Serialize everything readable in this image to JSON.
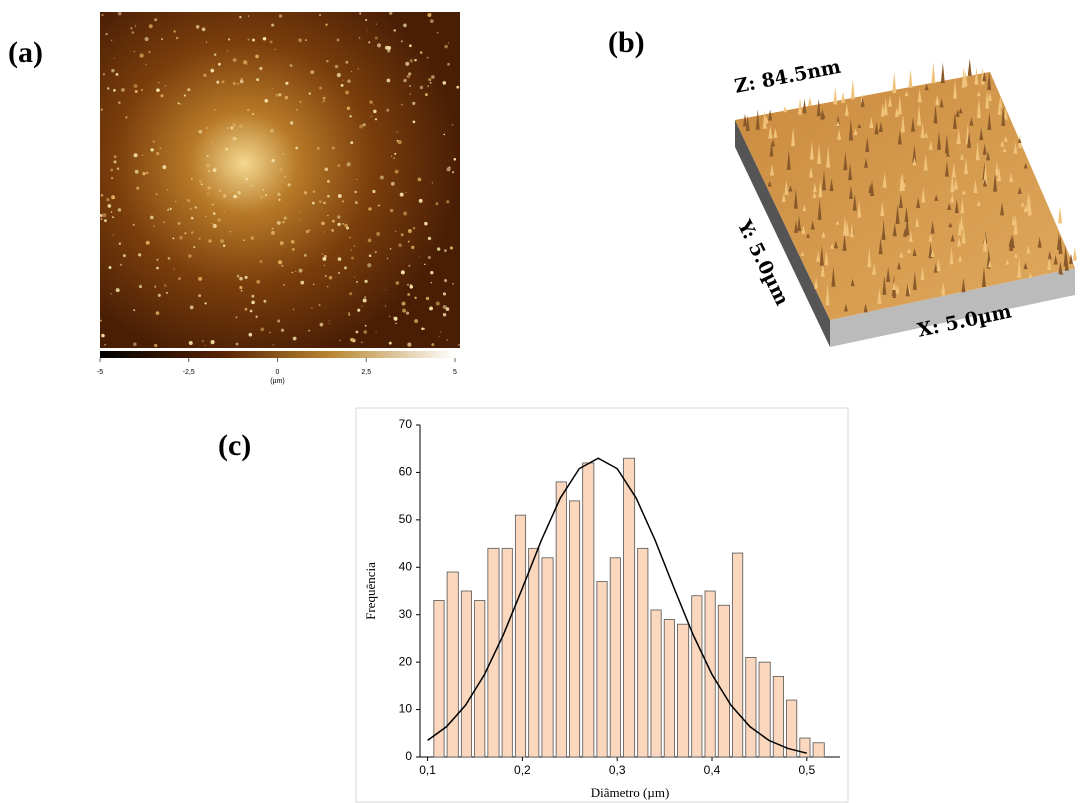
{
  "panels": {
    "a": {
      "label": "(a)",
      "colorbar": {
        "lim": [
          -5,
          5
        ],
        "ticks": [
          -5,
          {
            "value": -2.5,
            "label": "-2,5"
          },
          0,
          {
            "value": 2.5,
            "label": "2,5"
          },
          5
        ],
        "unit": "(µm)"
      }
    },
    "b": {
      "label": "(b)",
      "z_label": "Z: 84.5nm",
      "y_label": "Y: 5.0µm",
      "x_label": "X: 5.0µm"
    }
  },
  "chart_data": {
    "type": "histogram",
    "panel_label": "(c)",
    "x_label": "Diâmetro (µm)",
    "y_label": "Frequência",
    "bins": [
      0.105,
      0.119,
      0.134,
      0.148,
      0.162,
      0.177,
      0.191,
      0.205,
      0.219,
      0.234,
      0.248,
      0.262,
      0.277,
      0.291,
      0.305,
      0.32,
      0.334,
      0.348,
      0.362,
      0.377,
      0.391,
      0.405,
      0.42,
      0.434,
      0.448,
      0.463,
      0.477,
      0.491,
      0.505,
      0.52
    ],
    "values": [
      33,
      39,
      35,
      33,
      44,
      44,
      51,
      44,
      42,
      58,
      54,
      62,
      37,
      42,
      63,
      44,
      31,
      29,
      28,
      34,
      35,
      32,
      43,
      21,
      20,
      17,
      12,
      4,
      3
    ],
    "color": "#fad7bd",
    "edge_color": "#555555",
    "fit": {
      "x": [
        0.1,
        0.12,
        0.14,
        0.16,
        0.18,
        0.2,
        0.22,
        0.24,
        0.26,
        0.28,
        0.3,
        0.32,
        0.34,
        0.36,
        0.38,
        0.4,
        0.42,
        0.44,
        0.46,
        0.48,
        0.5
      ],
      "values": [
        3.5,
        6.4,
        10.9,
        17.4,
        25.8,
        35.6,
        45.7,
        54.6,
        60.8,
        63,
        60.8,
        54.6,
        45.7,
        35.6,
        25.8,
        17.4,
        10.9,
        6.4,
        3.5,
        1.8,
        0.8
      ],
      "color": "#000000"
    },
    "xlim": [
      0.092,
      0.535
    ],
    "ylim": [
      0,
      70
    ],
    "xticks": [
      {
        "value": 0.1,
        "label": "0,1"
      },
      {
        "value": 0.2,
        "label": "0,2"
      },
      {
        "value": 0.3,
        "label": "0,3"
      },
      {
        "value": 0.4,
        "label": "0,4"
      },
      {
        "value": 0.5,
        "label": "0,5"
      }
    ],
    "yticks": [
      0,
      10,
      20,
      30,
      40,
      50,
      60,
      70
    ]
  }
}
